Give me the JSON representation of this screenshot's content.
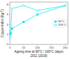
{
  "chart_data": {
    "type": "line",
    "x_label": [
      "Ageing time at 90°C / 100°C (days)",
      "2011 (2019)"
    ],
    "y_label": "Copper index (Kg/T)",
    "x": [
      0,
      4,
      8,
      50,
      100,
      200
    ],
    "series": [
      {
        "name": "90°C",
        "color": "#00ddee",
        "marker": "square",
        "line_style": "solid",
        "values": [
          1.5,
          2.2,
          3.2,
          4.5,
          6.0,
          7.8
        ]
      },
      {
        "name": "100°C",
        "color": "#00ddee",
        "marker": "open-circle",
        "line_style": "solid",
        "values": [
          1.5,
          3.8,
          7.2,
          7.8,
          6.8,
          7.8
        ]
      }
    ],
    "xlim": [
      0,
      210
    ],
    "ylim": [
      0,
      8.5
    ],
    "xticks": [
      0,
      50,
      100,
      150,
      200
    ],
    "yticks": [
      0,
      2,
      4,
      6,
      8
    ],
    "grid": false,
    "legend": "center right"
  }
}
